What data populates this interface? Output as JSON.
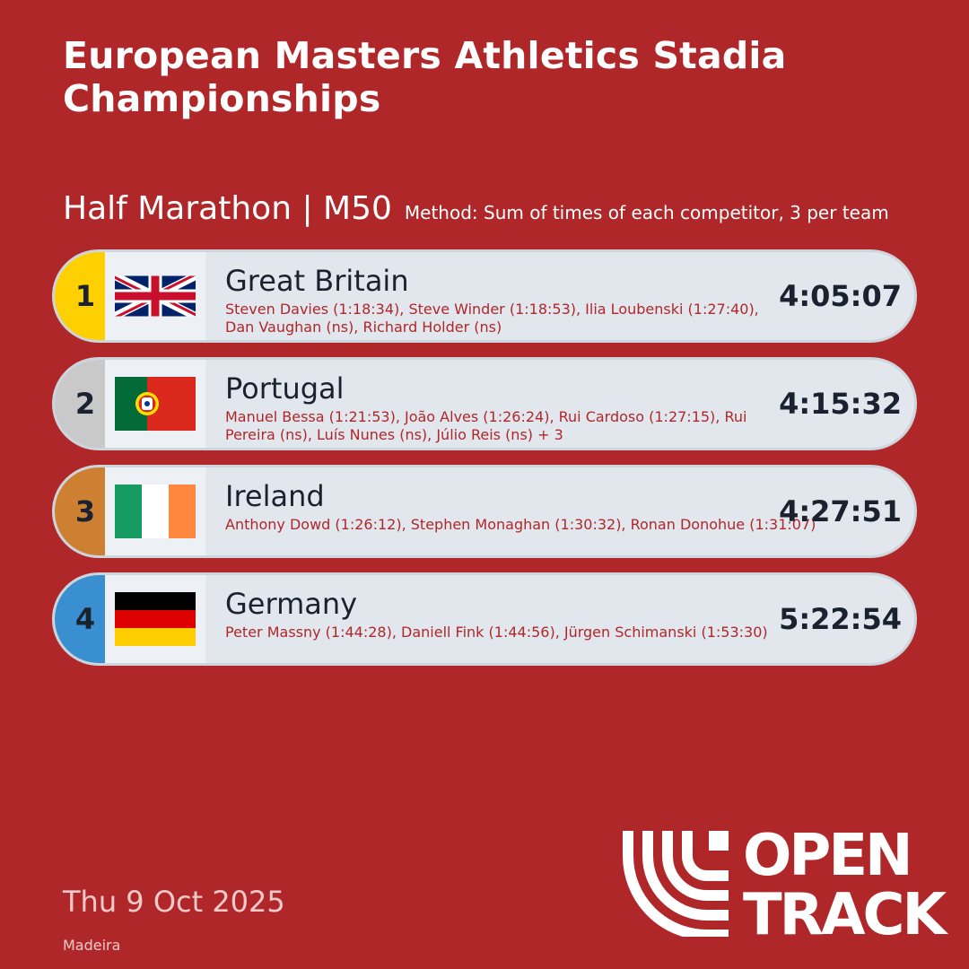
{
  "title": "European Masters Athletics Stadia Championships",
  "event": "Half Marathon | M50",
  "method": "Method: Sum of times of each competitor, 3 per team",
  "results": [
    {
      "rank": "1",
      "rank_color": "#ffd000",
      "flag": "gb-flag",
      "team": "Great Britain",
      "members": "Steven Davies (1:18:34), Steve Winder (1:18:53), Ilia Loubenski (1:27:40), Dan Vaughan (ns), Richard Holder (ns)",
      "time": "4:05:07"
    },
    {
      "rank": "2",
      "rank_color": "#c9c9c9",
      "flag": "portugal-flag",
      "team": "Portugal",
      "members": "Manuel Bessa (1:21:53), João Alves (1:26:24), Rui Cardoso (1:27:15), Rui Pereira (ns), Luís Nunes (ns), Júlio Reis (ns) + 3",
      "time": "4:15:32"
    },
    {
      "rank": "3",
      "rank_color": "#cd7f32",
      "flag": "ireland-flag",
      "team": "Ireland",
      "members": "Anthony Dowd (1:26:12), Stephen Monaghan (1:30:32), Ronan Donohue (1:31:07)",
      "time": "4:27:51"
    },
    {
      "rank": "4",
      "rank_color": "#3a8fd0",
      "flag": "germany-flag",
      "team": "Germany",
      "members": "Peter Massny (1:44:28), Daniell Fink (1:44:56), Jürgen Schimanski (1:53:30)",
      "time": "5:22:54"
    }
  ],
  "date": "Thu 9 Oct 2025",
  "venue": "Madeira",
  "logo": {
    "line1": "OPEN",
    "line2": "TRACK"
  }
}
